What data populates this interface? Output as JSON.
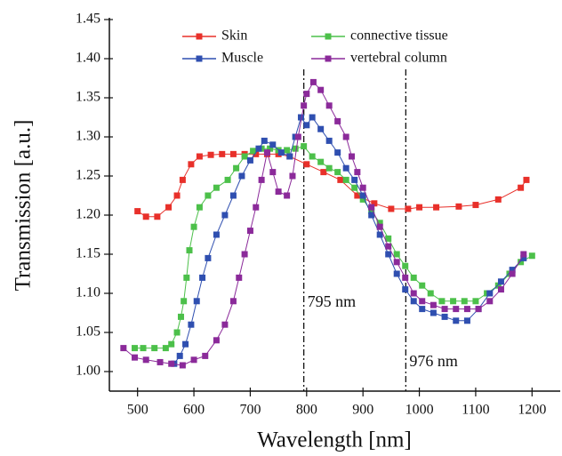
{
  "chart_data": {
    "type": "line",
    "x_label": "Wavelength [nm]",
    "y_label": "Transmission [a.u.]",
    "xlim": [
      450,
      1250
    ],
    "ylim": [
      0.975,
      1.45
    ],
    "xticks": [
      500,
      600,
      700,
      800,
      900,
      1000,
      1100,
      1200
    ],
    "yticks": [
      {
        "value": 1,
        "label": "1.00"
      },
      1.05,
      {
        "value": 1.1,
        "label": "1.10"
      },
      1.15,
      {
        "value": 1.2,
        "label": "1.20"
      },
      1.25,
      {
        "value": 1.3,
        "label": "1.30"
      },
      1.35,
      {
        "value": 1.4,
        "label": "1.40"
      },
      1.45
    ],
    "series": [
      {
        "name": "Skin",
        "color": "#e8302a",
        "x": [
          500,
          515,
          535,
          555,
          570,
          580,
          595,
          610,
          630,
          650,
          670,
          690,
          710,
          730,
          750,
          770,
          800,
          830,
          860,
          890,
          920,
          950,
          980,
          1000,
          1030,
          1070,
          1100,
          1140,
          1180,
          1190
        ],
        "values": [
          1.205,
          1.198,
          1.198,
          1.21,
          1.225,
          1.245,
          1.265,
          1.275,
          1.277,
          1.278,
          1.278,
          1.278,
          1.278,
          1.278,
          1.278,
          1.275,
          1.265,
          1.255,
          1.245,
          1.225,
          1.215,
          1.208,
          1.208,
          1.21,
          1.21,
          1.211,
          1.213,
          1.22,
          1.235,
          1.245
        ]
      },
      {
        "name": "connective tissue",
        "color": "#4cc04a",
        "x": [
          495,
          510,
          530,
          550,
          560,
          570,
          577,
          582,
          587,
          592,
          600,
          610,
          625,
          640,
          660,
          675,
          690,
          705,
          720,
          735,
          750,
          765,
          780,
          795,
          810,
          825,
          840,
          855,
          870,
          885,
          900,
          915,
          930,
          945,
          960,
          975,
          990,
          1005,
          1020,
          1040,
          1060,
          1080,
          1100,
          1120,
          1140,
          1160,
          1180,
          1200
        ],
        "values": [
          1.03,
          1.03,
          1.03,
          1.03,
          1.035,
          1.05,
          1.07,
          1.09,
          1.12,
          1.155,
          1.185,
          1.21,
          1.225,
          1.235,
          1.245,
          1.26,
          1.275,
          1.282,
          1.285,
          1.285,
          1.283,
          1.283,
          1.285,
          1.288,
          1.275,
          1.268,
          1.26,
          1.255,
          1.245,
          1.235,
          1.22,
          1.205,
          1.19,
          1.17,
          1.15,
          1.135,
          1.12,
          1.11,
          1.1,
          1.09,
          1.09,
          1.09,
          1.09,
          1.1,
          1.11,
          1.125,
          1.14,
          1.148
        ]
      },
      {
        "name": "Muscle",
        "color": "#2f4fb0",
        "x": [
          565,
          575,
          585,
          595,
          605,
          615,
          625,
          640,
          655,
          670,
          685,
          700,
          715,
          725,
          740,
          755,
          770,
          780,
          790,
          800,
          810,
          825,
          840,
          855,
          870,
          885,
          900,
          915,
          930,
          945,
          960,
          975,
          990,
          1005,
          1025,
          1045,
          1065,
          1085,
          1105,
          1125,
          1145,
          1165,
          1185
        ],
        "values": [
          1.01,
          1.02,
          1.035,
          1.06,
          1.09,
          1.12,
          1.145,
          1.175,
          1.2,
          1.225,
          1.25,
          1.27,
          1.285,
          1.295,
          1.29,
          1.28,
          1.275,
          1.3,
          1.325,
          1.315,
          1.325,
          1.31,
          1.295,
          1.28,
          1.26,
          1.245,
          1.225,
          1.2,
          1.175,
          1.15,
          1.125,
          1.105,
          1.09,
          1.08,
          1.075,
          1.07,
          1.065,
          1.065,
          1.08,
          1.1,
          1.115,
          1.13,
          1.145
        ]
      },
      {
        "name": "vertebral column",
        "color": "#8b2a9a",
        "x": [
          475,
          495,
          515,
          540,
          560,
          580,
          600,
          620,
          640,
          655,
          670,
          680,
          690,
          700,
          710,
          720,
          730,
          740,
          750,
          765,
          775,
          785,
          795,
          800,
          812,
          825,
          840,
          855,
          870,
          880,
          890,
          900,
          915,
          930,
          945,
          960,
          975,
          990,
          1005,
          1025,
          1045,
          1065,
          1085,
          1105,
          1125,
          1145,
          1165,
          1185
        ],
        "values": [
          1.03,
          1.018,
          1.015,
          1.012,
          1.01,
          1.008,
          1.015,
          1.02,
          1.04,
          1.06,
          1.09,
          1.12,
          1.15,
          1.18,
          1.21,
          1.245,
          1.28,
          1.255,
          1.23,
          1.225,
          1.25,
          1.3,
          1.34,
          1.355,
          1.37,
          1.36,
          1.34,
          1.32,
          1.3,
          1.275,
          1.255,
          1.235,
          1.21,
          1.185,
          1.16,
          1.14,
          1.12,
          1.1,
          1.09,
          1.085,
          1.08,
          1.08,
          1.08,
          1.08,
          1.09,
          1.105,
          1.125,
          1.15
        ]
      }
    ],
    "annotations": [
      {
        "x": 795,
        "label": "795 nm"
      },
      {
        "x": 976,
        "label": "976 nm"
      }
    ]
  }
}
